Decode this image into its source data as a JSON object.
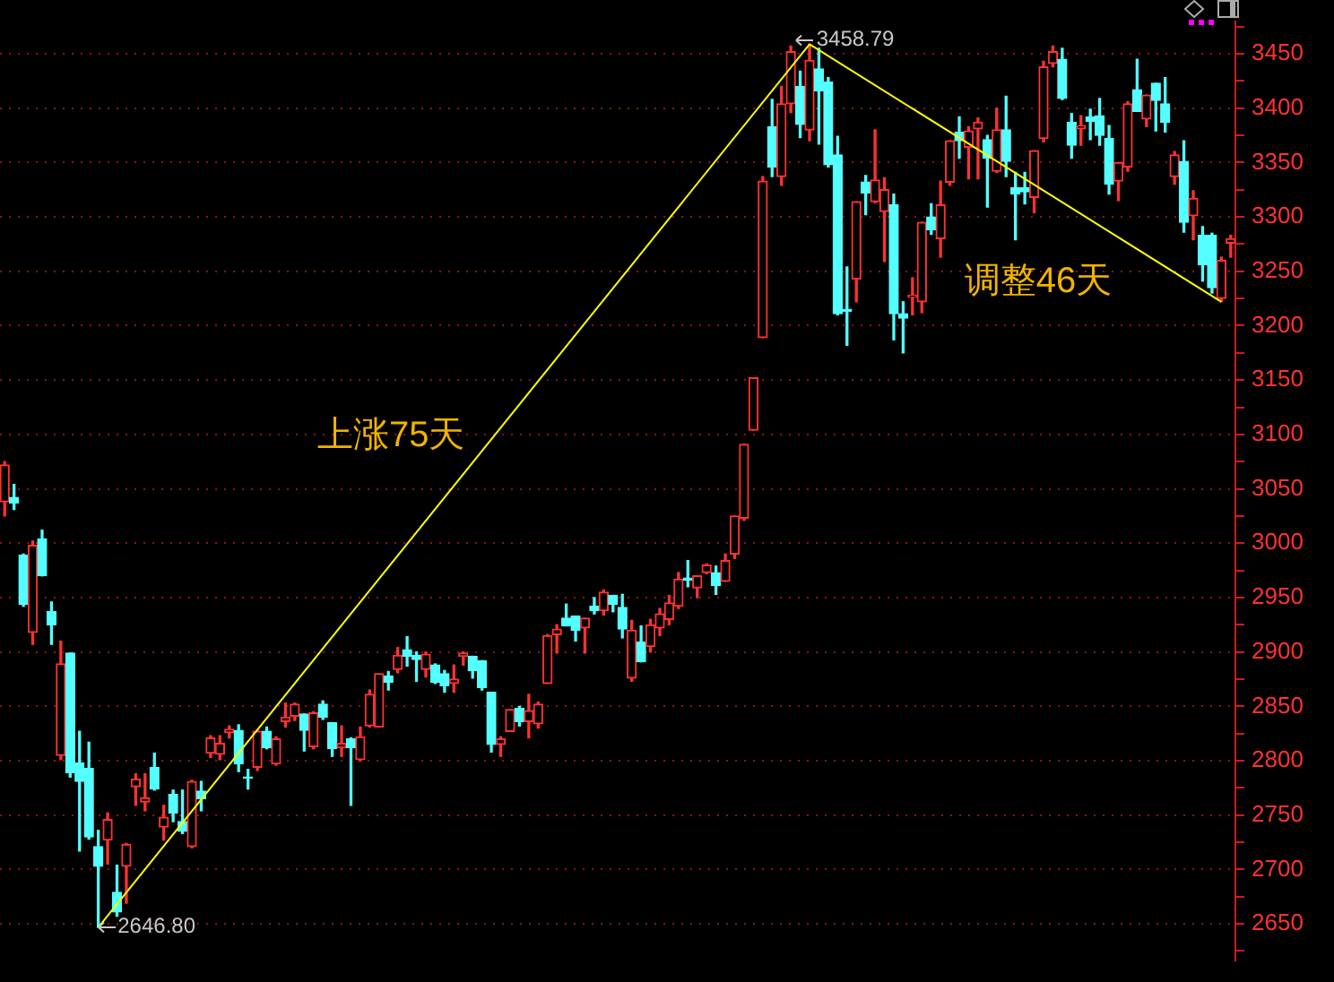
{
  "chart_data": {
    "type": "candlestick",
    "categories": [
      null,
      null,
      null,
      null,
      null,
      null,
      null,
      null,
      null,
      null,
      null,
      null,
      null,
      null,
      null,
      null,
      null,
      null,
      null,
      null,
      null,
      null,
      null,
      null,
      null,
      null,
      null,
      null,
      null,
      null,
      null,
      null,
      null,
      null,
      null,
      null,
      null,
      null,
      null,
      null,
      null,
      null,
      null,
      null,
      null,
      null,
      null,
      null,
      null,
      null,
      null,
      null,
      null,
      null,
      null,
      null,
      null,
      null,
      null,
      null,
      null,
      null,
      null,
      null,
      null,
      null,
      null,
      null,
      null,
      null,
      null,
      null,
      null,
      null,
      null,
      null,
      null,
      null,
      null,
      null,
      null,
      null,
      null,
      null,
      null,
      null,
      null,
      null,
      null,
      null,
      null,
      null,
      null,
      null,
      null,
      null,
      null,
      null,
      null,
      null,
      null,
      null,
      null,
      null,
      null,
      null,
      null,
      null,
      null,
      null,
      null,
      null,
      null,
      null,
      null,
      null,
      null,
      null,
      null,
      null,
      null,
      null,
      null,
      null,
      null,
      null,
      null,
      null,
      null,
      null,
      null,
      null
    ],
    "ohlc": [
      [
        3038,
        3075,
        3025,
        3072
      ],
      [
        3042,
        3054,
        3031,
        3037
      ],
      [
        2989,
        2990,
        2942,
        2944
      ],
      [
        2918,
        3002,
        2907,
        2998
      ],
      [
        3004,
        3012,
        2970,
        2970
      ],
      [
        2937,
        2946,
        2907,
        2925
      ],
      [
        2805,
        2910,
        2801,
        2889
      ],
      [
        2899,
        2899,
        2785,
        2789
      ],
      [
        2798,
        2827,
        2717,
        2781
      ],
      [
        2793,
        2817,
        2728,
        2730
      ],
      [
        2721,
        2736,
        2646.8,
        2703
      ],
      [
        2727,
        2752,
        2705,
        2746
      ],
      [
        2679,
        2704,
        2657,
        2661
      ],
      [
        2703,
        2724,
        2669,
        2723
      ],
      [
        2776,
        2788,
        2759,
        2783
      ],
      [
        2762,
        2788,
        2754,
        2766
      ],
      [
        2794,
        2807,
        2773,
        2774
      ],
      [
        2739,
        2759,
        2727,
        2748
      ],
      [
        2769,
        2773,
        2744,
        2752
      ],
      [
        2744,
        2773,
        2733,
        2735
      ],
      [
        2721,
        2782,
        2720,
        2781
      ],
      [
        2772,
        2781,
        2754,
        2765
      ],
      [
        2807,
        2823,
        2803,
        2821
      ],
      [
        2806,
        2823,
        2801,
        2816
      ],
      [
        2826,
        2832,
        2821,
        2829
      ],
      [
        2828,
        2833,
        2790,
        2797
      ],
      [
        2785,
        2792,
        2774,
        2784
      ],
      [
        2794,
        2828,
        2791,
        2827
      ],
      [
        2827,
        2831,
        2811,
        2812
      ],
      [
        2797,
        2822,
        2796,
        2820
      ],
      [
        2836,
        2853,
        2831,
        2840
      ],
      [
        2841,
        2853,
        2837,
        2852
      ],
      [
        2843,
        2843,
        2809,
        2828
      ],
      [
        2813,
        2845,
        2811,
        2844
      ],
      [
        2852,
        2855,
        2838,
        2840
      ],
      [
        2835,
        2835,
        2804,
        2811
      ],
      [
        2812,
        2832,
        2804,
        2816
      ],
      [
        2820,
        2821,
        2759,
        2812
      ],
      [
        2801,
        2831,
        2800,
        2822
      ],
      [
        2832,
        2865,
        2831,
        2861
      ],
      [
        2831,
        2880,
        2831,
        2880
      ],
      [
        2878,
        2882,
        2865,
        2872
      ],
      [
        2884,
        2904,
        2881,
        2897
      ],
      [
        2902,
        2914,
        2887,
        2896
      ],
      [
        2897,
        2900,
        2873,
        2893
      ],
      [
        2884,
        2900,
        2877,
        2898
      ],
      [
        2888,
        2889,
        2871,
        2872
      ],
      [
        2880,
        2883,
        2863,
        2869
      ],
      [
        2871,
        2888,
        2863,
        2875
      ],
      [
        2896,
        2900,
        2888,
        2899
      ],
      [
        2896,
        2896,
        2876,
        2883
      ],
      [
        2892,
        2892,
        2865,
        2867
      ],
      [
        2863,
        2863,
        2808,
        2815
      ],
      [
        2815,
        2822,
        2804,
        2820
      ],
      [
        2827,
        2847,
        2827,
        2847
      ],
      [
        2848,
        2850,
        2832,
        2836
      ],
      [
        2836,
        2861,
        2821,
        2846
      ],
      [
        2834,
        2854,
        2830,
        2852
      ],
      [
        2871,
        2916,
        2871,
        2915
      ],
      [
        2916,
        2925,
        2899,
        2921
      ],
      [
        2931,
        2944,
        2924,
        2924
      ],
      [
        2933,
        2933,
        2910,
        2920
      ],
      [
        2922,
        2931,
        2899,
        2931
      ],
      [
        2942,
        2950,
        2935,
        2938
      ],
      [
        2938,
        2957,
        2934,
        2955
      ],
      [
        2952,
        2952,
        2937,
        2944
      ],
      [
        2941,
        2953,
        2913,
        2921
      ],
      [
        2876,
        2929,
        2873,
        2920
      ],
      [
        2909,
        2924,
        2891,
        2891
      ],
      [
        2905,
        2930,
        2900,
        2925
      ],
      [
        2922,
        2940,
        2915,
        2935
      ],
      [
        2930,
        2952,
        2925,
        2945
      ],
      [
        2942,
        2973,
        2940,
        2967
      ],
      [
        2968,
        2984,
        2960,
        2966
      ],
      [
        2959,
        2970,
        2950,
        2970
      ],
      [
        2973,
        2981,
        2972,
        2980
      ],
      [
        2973,
        2979,
        2953,
        2961
      ],
      [
        2965,
        2990,
        2965,
        2984
      ],
      [
        2990,
        3025,
        2986,
        3025
      ],
      [
        3023,
        3091,
        3021,
        3091
      ],
      [
        3104,
        3152,
        3104,
        3152
      ],
      [
        3189,
        3337,
        3189,
        3333
      ],
      [
        3383,
        3408,
        3337,
        3346
      ],
      [
        3337,
        3420,
        3329,
        3404
      ],
      [
        3404,
        3457,
        3396,
        3452
      ],
      [
        3420,
        3434,
        3373,
        3385
      ],
      [
        3380,
        3458.79,
        3370,
        3444
      ],
      [
        3436,
        3455,
        3367,
        3416
      ],
      [
        3424,
        3428,
        3346,
        3348
      ],
      [
        3357,
        3374,
        3210,
        3211
      ],
      [
        3215,
        3254,
        3182,
        3213
      ],
      [
        3243,
        3314,
        3222,
        3314
      ],
      [
        3332,
        3338,
        3302,
        3322
      ],
      [
        3314,
        3380,
        3313,
        3334
      ],
      [
        3305,
        3336,
        3259,
        3325
      ],
      [
        3311,
        3321,
        3187,
        3211
      ],
      [
        3211,
        3222,
        3175,
        3207
      ],
      [
        3226,
        3244,
        3210,
        3228
      ],
      [
        3222,
        3295,
        3212,
        3295
      ],
      [
        3300,
        3312,
        3284,
        3288
      ],
      [
        3280,
        3333,
        3263,
        3311
      ],
      [
        3332,
        3370,
        3329,
        3370
      ],
      [
        3378,
        3392,
        3354,
        3370
      ],
      [
        3364,
        3383,
        3335,
        3379
      ],
      [
        3381,
        3391,
        3335,
        3387
      ],
      [
        3371,
        3375,
        3309,
        3354
      ],
      [
        3342,
        3400,
        3341,
        3380
      ],
      [
        3380,
        3411,
        3337,
        3351
      ],
      [
        3327,
        3341,
        3279,
        3321
      ],
      [
        3327,
        3341,
        3312,
        3323
      ],
      [
        3318,
        3361,
        3304,
        3361
      ],
      [
        3372,
        3443,
        3369,
        3438
      ],
      [
        3441,
        3457,
        3438,
        3452
      ],
      [
        3445,
        3455,
        3408,
        3409
      ],
      [
        3387,
        3395,
        3354,
        3366
      ],
      [
        3381,
        3393,
        3366,
        3384
      ],
      [
        3392,
        3399,
        3371,
        3388
      ],
      [
        3393,
        3409,
        3366,
        3375
      ],
      [
        3372,
        3384,
        3321,
        3330
      ],
      [
        3333,
        3350,
        3315,
        3350
      ],
      [
        3346,
        3406,
        3342,
        3404
      ],
      [
        3417,
        3445,
        3397,
        3397
      ],
      [
        3390,
        3412,
        3383,
        3412
      ],
      [
        3423,
        3423,
        3379,
        3407
      ],
      [
        3404,
        3428,
        3378,
        3387
      ],
      [
        3337,
        3360,
        3330,
        3357
      ],
      [
        3351,
        3370,
        3286,
        3295
      ],
      [
        3301,
        3324,
        3279,
        3317
      ],
      [
        3283,
        3291,
        3241,
        3256
      ],
      [
        3283,
        3285,
        3230,
        3235
      ],
      [
        3225,
        3263,
        3222,
        3260
      ],
      [
        3276,
        3283,
        3263,
        3280
      ]
    ],
    "colors": [
      "#ff3232",
      "#54ffff",
      "#54ffff",
      "#ff3232",
      "#54ffff",
      "#54ffff",
      "#ff3232",
      "#54ffff",
      "#54ffff",
      "#54ffff",
      "#54ffff",
      "#ff3232",
      "#54ffff",
      "#ff3232",
      "#ff3232",
      "#ff3232",
      "#54ffff",
      "#ff3232",
      "#54ffff",
      "#54ffff",
      "#ff3232",
      "#54ffff",
      "#ff3232",
      "#ff3232",
      "#ff3232",
      "#54ffff",
      "#54ffff",
      "#ff3232",
      "#54ffff",
      "#ff3232",
      "#ff3232",
      "#ff3232",
      "#54ffff",
      "#ff3232",
      "#54ffff",
      "#54ffff",
      "#ff3232",
      "#54ffff",
      "#ff3232",
      "#ff3232",
      "#ff3232",
      "#54ffff",
      "#ff3232",
      "#54ffff",
      "#54ffff",
      "#ff3232",
      "#54ffff",
      "#54ffff",
      "#ff3232",
      "#ff3232",
      "#54ffff",
      "#54ffff",
      "#54ffff",
      "#ff3232",
      "#ff3232",
      "#54ffff",
      "#ff3232",
      "#ff3232",
      "#ff3232",
      "#ff3232",
      "#54ffff",
      "#54ffff",
      "#ff3232",
      "#54ffff",
      "#ff3232",
      "#54ffff",
      "#54ffff",
      "#ff3232",
      "#54ffff",
      "#ff3232",
      "#ff3232",
      "#ff3232",
      "#ff3232",
      "#54ffff",
      "#ff3232",
      "#ff3232",
      "#54ffff",
      "#ff3232",
      "#ff3232",
      "#ff3232",
      "#ff3232",
      "#ff3232",
      "#54ffff",
      "#ff3232",
      "#ff3232",
      "#54ffff",
      "#ff3232",
      "#54ffff",
      "#54ffff",
      "#54ffff",
      "#54ffff",
      "#ff3232",
      "#54ffff",
      "#ff3232",
      "#ff3232",
      "#54ffff",
      "#54ffff",
      "#ff3232",
      "#ff3232",
      "#54ffff",
      "#ff3232",
      "#ff3232",
      "#54ffff",
      "#ff3232",
      "#ff3232",
      "#54ffff",
      "#ff3232",
      "#54ffff",
      "#54ffff",
      "#54ffff",
      "#ff3232",
      "#ff3232",
      "#ff3232",
      "#54ffff",
      "#54ffff",
      "#ff3232",
      "#54ffff",
      "#54ffff",
      "#54ffff",
      "#ff3232",
      "#ff3232",
      "#54ffff",
      "#ff3232",
      "#54ffff",
      "#54ffff",
      "#ff3232",
      "#54ffff",
      "#ff3232",
      "#54ffff",
      "#54ffff",
      "#ff3232",
      "#ff3232"
    ],
    "series": [
      {
        "type": "line",
        "color": "#ffff00",
        "values": [
          null,
          null,
          null,
          null,
          null,
          null,
          null,
          null,
          null,
          null,
          2646.8,
          null,
          null,
          null,
          null,
          null,
          null,
          null,
          null,
          null,
          null,
          null,
          null,
          null,
          null,
          null,
          null,
          null,
          null,
          null,
          null,
          null,
          null,
          null,
          null,
          null,
          null,
          null,
          null,
          null,
          null,
          null,
          null,
          null,
          null,
          null,
          null,
          null,
          null,
          null,
          null,
          null,
          null,
          null,
          null,
          null,
          null,
          null,
          null,
          null,
          null,
          null,
          null,
          null,
          null,
          null,
          null,
          null,
          null,
          null,
          null,
          null,
          null,
          null,
          null,
          null,
          null,
          null,
          null,
          null,
          null,
          null,
          null,
          null,
          null,
          null,
          3458.79,
          null,
          null,
          null,
          null,
          null,
          null,
          null,
          null,
          null,
          null,
          null,
          null,
          null,
          null,
          null,
          null,
          null,
          null,
          null,
          null,
          null,
          null,
          null,
          null,
          null,
          null,
          null,
          null,
          null,
          null,
          null,
          null,
          null,
          null,
          null,
          null,
          null,
          null,
          null,
          null,
          null,
          null,
          null,
          3222,
          null
        ]
      }
    ],
    "annotations": [
      "上涨75天",
      "调整46天",
      "3458.79",
      "2646.80"
    ],
    "ylim": [
      2616,
      3480
    ],
    "yticks": [
      {
        "value": 2625,
        "label": null
      },
      2650,
      {
        "value": 2675,
        "label": null
      },
      2700,
      {
        "value": 2725,
        "label": null
      },
      2750,
      {
        "value": 2775,
        "label": null
      },
      2800,
      {
        "value": 2825,
        "label": null
      },
      2850,
      {
        "value": 2875,
        "label": null
      },
      2900,
      {
        "value": 2925,
        "label": null
      },
      2950,
      {
        "value": 2975,
        "label": null
      },
      3000,
      {
        "value": 3025,
        "label": null
      },
      3050,
      {
        "value": 3075,
        "label": null
      },
      3100,
      {
        "value": 3125,
        "label": null
      },
      3150,
      {
        "value": 3175,
        "label": null
      },
      3200,
      {
        "value": 3225,
        "label": null
      },
      3250,
      {
        "value": 3275,
        "label": null
      },
      3300,
      {
        "value": 3325,
        "label": null
      },
      3350,
      {
        "value": 3375,
        "label": null
      },
      3400,
      {
        "value": 3425,
        "label": null
      },
      3450,
      {
        "value": 3475,
        "label": null
      }
    ],
    "grid": "y",
    "legend": false,
    "tick_labels": "y"
  }
}
